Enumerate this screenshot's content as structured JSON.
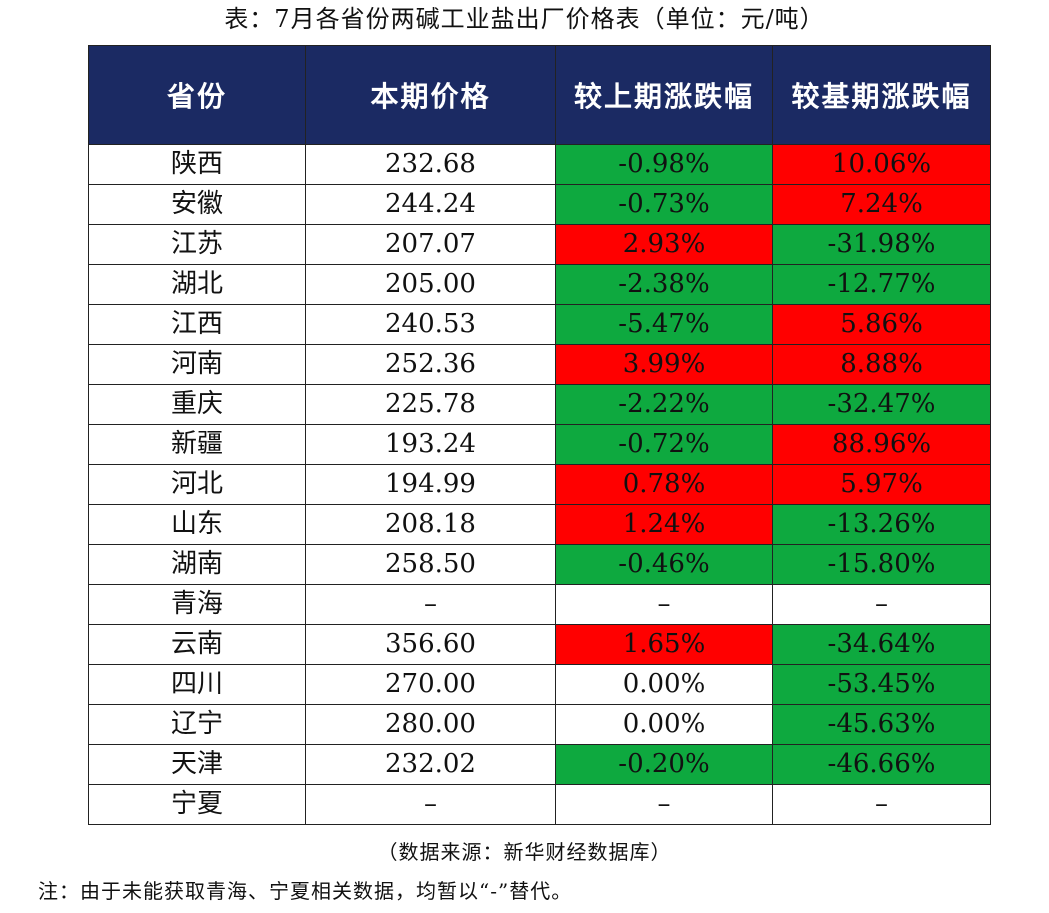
{
  "title": "表：7月各省份两碱工业盐出厂价格表（单位：元/吨）",
  "table": {
    "headers": [
      "省份",
      "本期价格",
      "较上期涨跌幅",
      "较基期涨跌幅"
    ],
    "rows": [
      {
        "province": "陕西",
        "price": "232.68",
        "prev_change": "-0.98%",
        "prev_dir": "neg",
        "base_change": "10.06%",
        "base_dir": "pos"
      },
      {
        "province": "安徽",
        "price": "244.24",
        "prev_change": "-0.73%",
        "prev_dir": "neg",
        "base_change": "7.24%",
        "base_dir": "pos"
      },
      {
        "province": "江苏",
        "price": "207.07",
        "prev_change": "2.93%",
        "prev_dir": "pos",
        "base_change": "-31.98%",
        "base_dir": "neg"
      },
      {
        "province": "湖北",
        "price": "205.00",
        "prev_change": "-2.38%",
        "prev_dir": "neg",
        "base_change": "-12.77%",
        "base_dir": "neg"
      },
      {
        "province": "江西",
        "price": "240.53",
        "prev_change": "-5.47%",
        "prev_dir": "neg",
        "base_change": "5.86%",
        "base_dir": "pos"
      },
      {
        "province": "河南",
        "price": "252.36",
        "prev_change": "3.99%",
        "prev_dir": "pos",
        "base_change": "8.88%",
        "base_dir": "pos"
      },
      {
        "province": "重庆",
        "price": "225.78",
        "prev_change": "-2.22%",
        "prev_dir": "neg",
        "base_change": "-32.47%",
        "base_dir": "neg"
      },
      {
        "province": "新疆",
        "price": "193.24",
        "prev_change": "-0.72%",
        "prev_dir": "neg",
        "base_change": "88.96%",
        "base_dir": "pos"
      },
      {
        "province": "河北",
        "price": "194.99",
        "prev_change": "0.78%",
        "prev_dir": "pos",
        "base_change": "5.97%",
        "base_dir": "pos"
      },
      {
        "province": "山东",
        "price": "208.18",
        "prev_change": "1.24%",
        "prev_dir": "pos",
        "base_change": "-13.26%",
        "base_dir": "neg"
      },
      {
        "province": "湖南",
        "price": "258.50",
        "prev_change": "-0.46%",
        "prev_dir": "neg",
        "base_change": "-15.80%",
        "base_dir": "neg"
      },
      {
        "province": "青海",
        "price": "–",
        "prev_change": "–",
        "prev_dir": "none",
        "base_change": "–",
        "base_dir": "none"
      },
      {
        "province": "云南",
        "price": "356.60",
        "prev_change": "1.65%",
        "prev_dir": "pos",
        "base_change": "-34.64%",
        "base_dir": "neg"
      },
      {
        "province": "四川",
        "price": "270.00",
        "prev_change": "0.00%",
        "prev_dir": "none",
        "base_change": "-53.45%",
        "base_dir": "neg"
      },
      {
        "province": "辽宁",
        "price": "280.00",
        "prev_change": "0.00%",
        "prev_dir": "none",
        "base_change": "-45.63%",
        "base_dir": "neg"
      },
      {
        "province": "天津",
        "price": "232.02",
        "prev_change": "-0.20%",
        "prev_dir": "neg",
        "base_change": "-46.66%",
        "base_dir": "neg"
      },
      {
        "province": "宁夏",
        "price": "–",
        "prev_change": "–",
        "prev_dir": "none",
        "base_change": "–",
        "base_dir": "none"
      }
    ]
  },
  "colors": {
    "header_bg": "#1b2a63",
    "rise": "#ff0000",
    "fall": "#0ea93f"
  },
  "source": "（数据来源：新华财经数据库）",
  "note": "注：由于未能获取青海、宁夏相关数据，均暂以“-”替代。"
}
